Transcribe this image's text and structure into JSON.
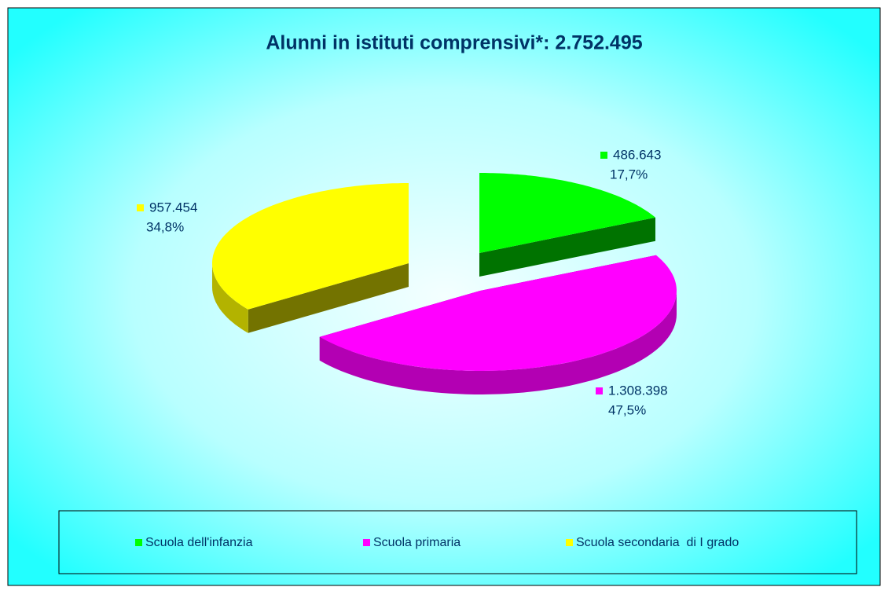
{
  "chart_data": {
    "type": "pie3d",
    "title": "Alunni in istituti comprensivi*: 2.752.495",
    "categories": [
      "Scuola dell'infanzia",
      "Scuola primaria",
      "Scuola secondaria  di I grado"
    ],
    "values": [
      486643,
      1308398,
      957454
    ],
    "value_labels": [
      "486.643",
      "1.308.398",
      "957.454"
    ],
    "percent_labels": [
      "17,7%",
      "47,5%",
      "34,8%"
    ],
    "colors": [
      "#00ff00",
      "#ff00ff",
      "#ffff00"
    ],
    "legend": "bottom"
  }
}
